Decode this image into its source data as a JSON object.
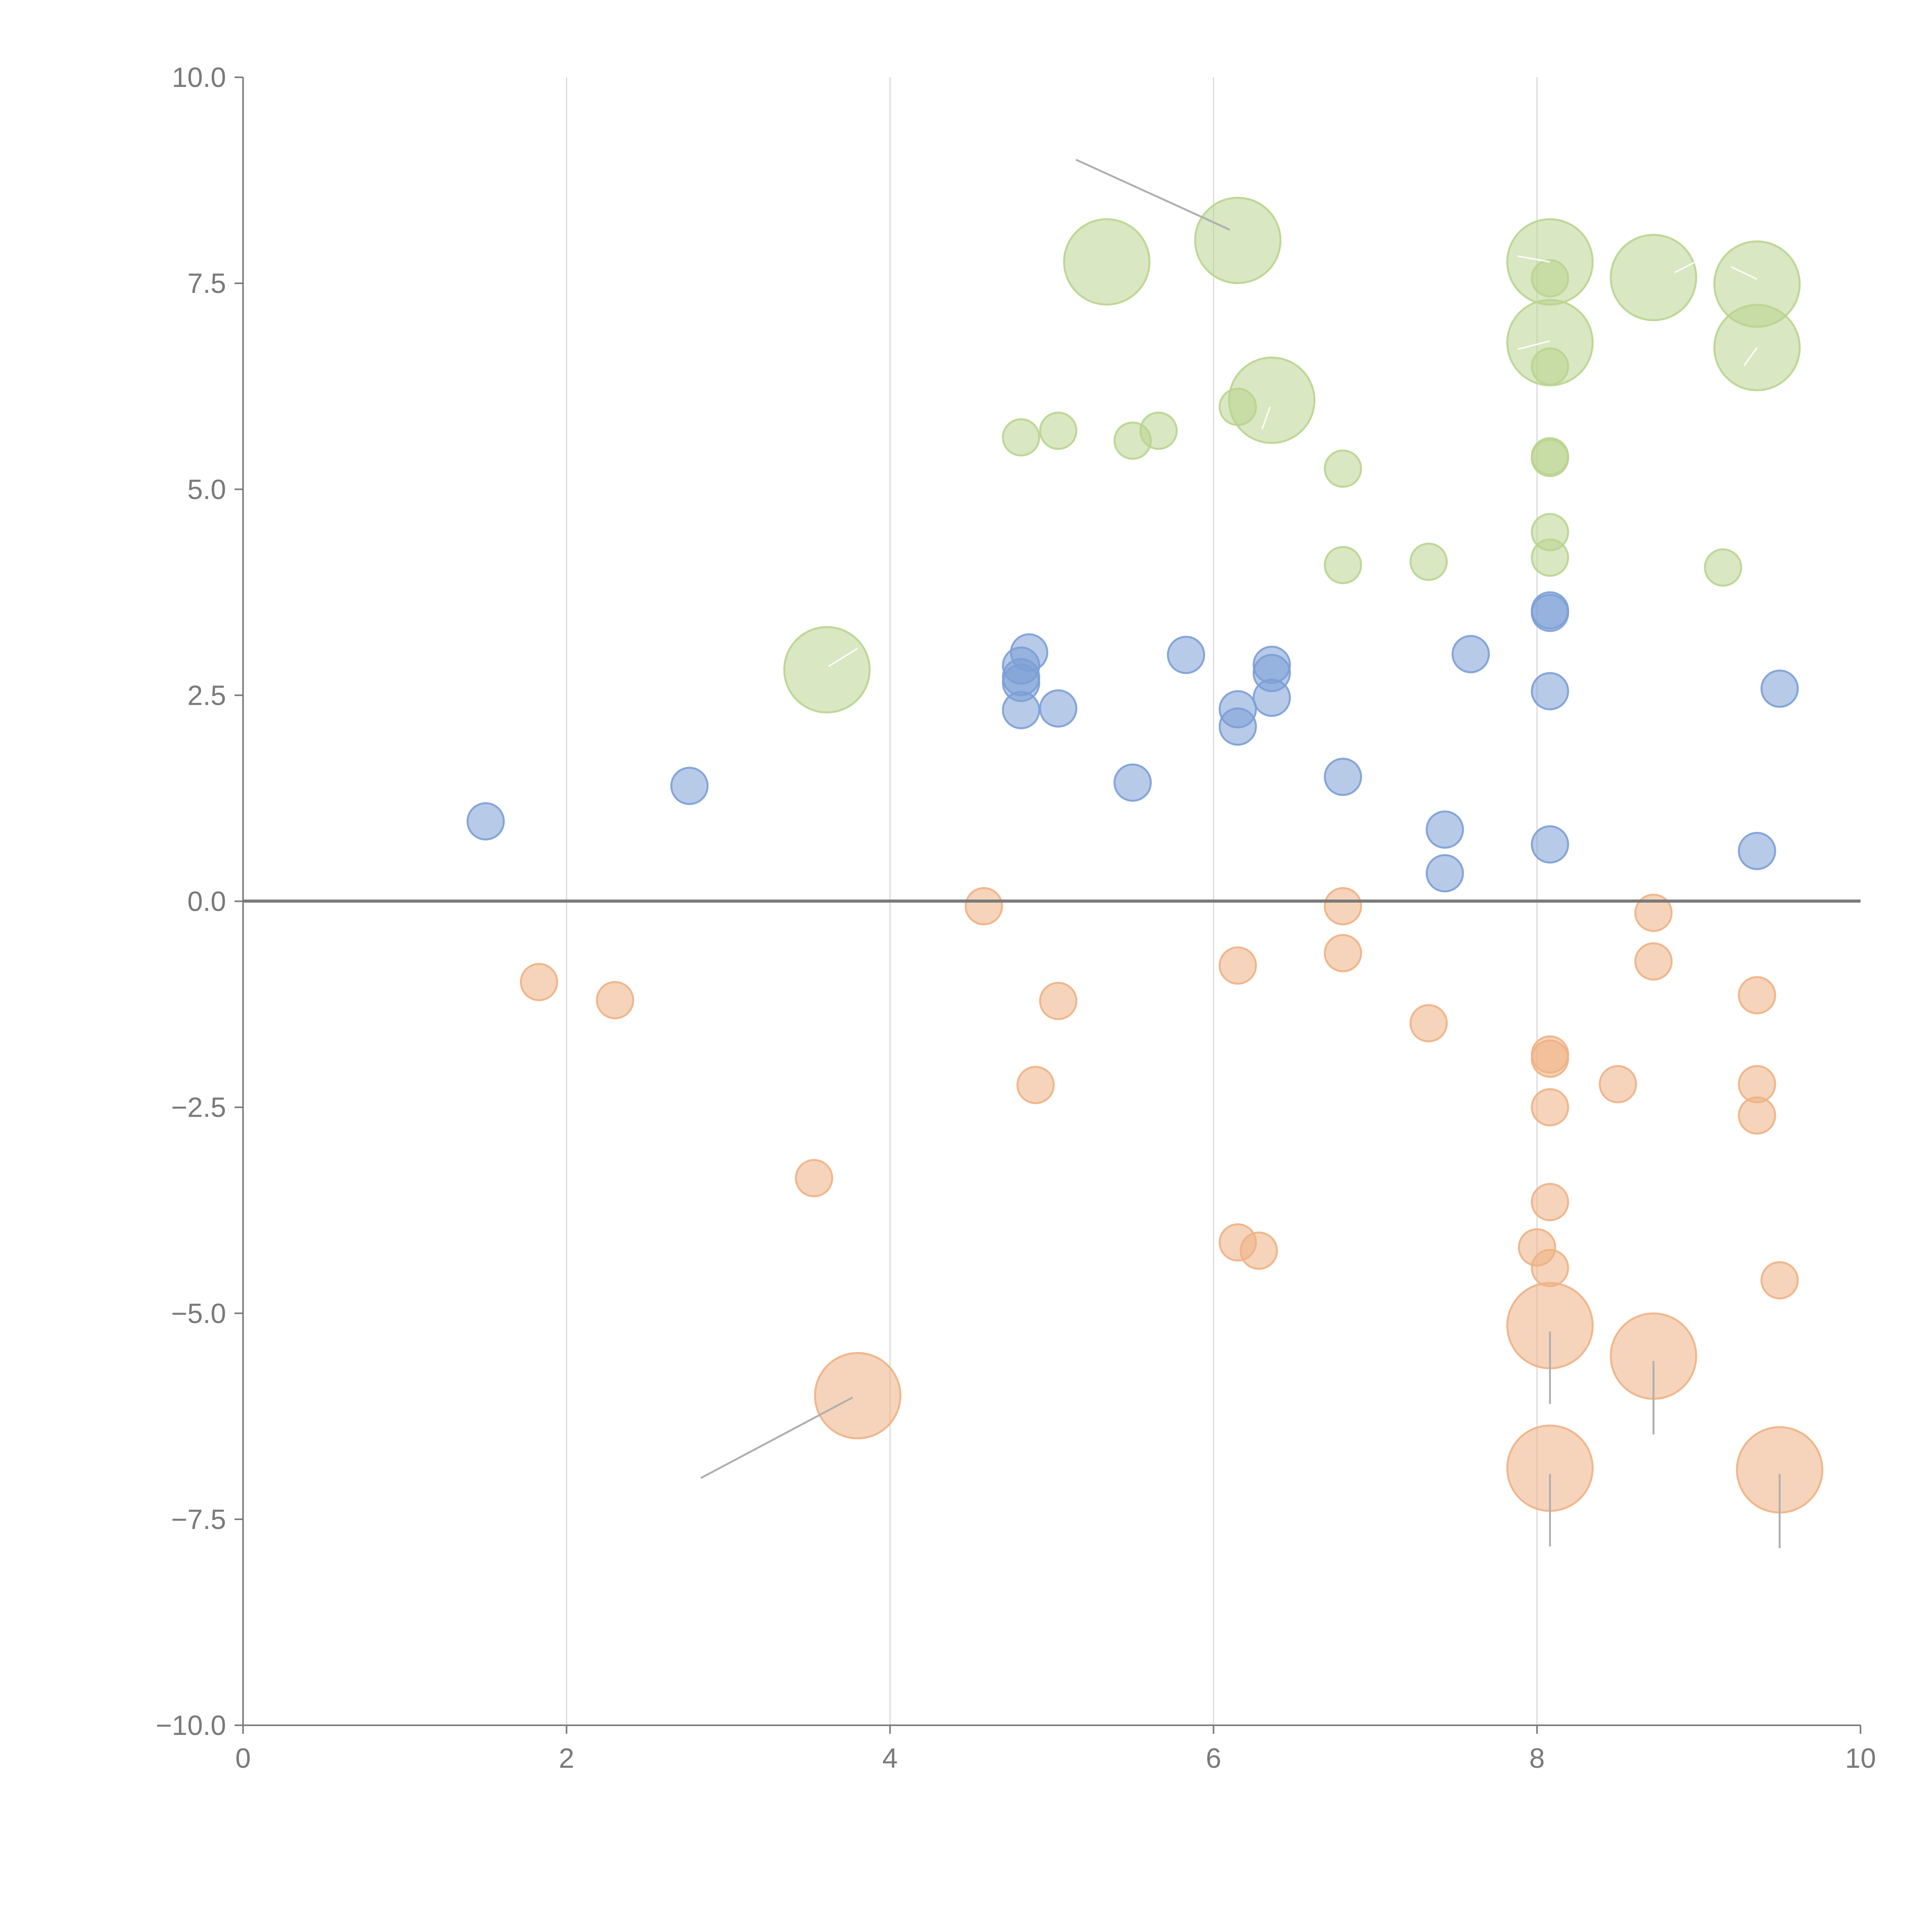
{
  "chart_data": {
    "type": "scatter",
    "title": "",
    "xlabel": "",
    "ylabel": "",
    "xlim": [
      0,
      10
    ],
    "ylim": [
      -10,
      10
    ],
    "x_ticks": [
      "0",
      "2",
      "4",
      "6",
      "8",
      "10"
    ],
    "y_ticks": [
      "10.0",
      "7.5",
      "5.0",
      "2.5",
      "0.0",
      "−2.5",
      "−5.0",
      "−7.5",
      "−10.0"
    ],
    "grid": "vertical",
    "legend": "none",
    "series": [
      {
        "name": "blue",
        "color": "#7b9fd6",
        "points": [
          {
            "x": 1.5,
            "y": 0.97,
            "size": 1
          },
          {
            "x": 2.76,
            "y": 1.4,
            "size": 1
          },
          {
            "x": 4.81,
            "y": 2.32,
            "size": 1
          },
          {
            "x": 4.81,
            "y": 2.65,
            "size": 1
          },
          {
            "x": 4.81,
            "y": 2.72,
            "size": 1
          },
          {
            "x": 4.81,
            "y": 2.86,
            "size": 1
          },
          {
            "x": 4.86,
            "y": 3.02,
            "size": 1
          },
          {
            "x": 5.04,
            "y": 2.34,
            "size": 1
          },
          {
            "x": 5.5,
            "y": 1.44,
            "size": 1
          },
          {
            "x": 5.83,
            "y": 2.99,
            "size": 1
          },
          {
            "x": 6.15,
            "y": 2.33,
            "size": 1
          },
          {
            "x": 6.15,
            "y": 2.12,
            "size": 1
          },
          {
            "x": 6.36,
            "y": 2.87,
            "size": 1
          },
          {
            "x": 6.36,
            "y": 2.77,
            "size": 1
          },
          {
            "x": 6.36,
            "y": 2.47,
            "size": 1
          },
          {
            "x": 6.8,
            "y": 1.51,
            "size": 1
          },
          {
            "x": 7.43,
            "y": 0.87,
            "size": 1
          },
          {
            "x": 7.43,
            "y": 0.34,
            "size": 1
          },
          {
            "x": 7.59,
            "y": 3.0,
            "size": 1
          },
          {
            "x": 8.08,
            "y": 3.53,
            "size": 1
          },
          {
            "x": 8.08,
            "y": 3.5,
            "size": 1
          },
          {
            "x": 8.08,
            "y": 2.55,
            "size": 1
          },
          {
            "x": 8.08,
            "y": 0.69,
            "size": 1
          },
          {
            "x": 9.36,
            "y": 0.61,
            "size": 1
          },
          {
            "x": 9.5,
            "y": 2.58,
            "size": 1
          }
        ]
      },
      {
        "name": "green",
        "color": "#b9d48f",
        "points": [
          {
            "x": 3.61,
            "y": 2.81,
            "size": 2.35
          },
          {
            "x": 4.81,
            "y": 5.63,
            "size": 1
          },
          {
            "x": 5.04,
            "y": 5.71,
            "size": 1
          },
          {
            "x": 5.34,
            "y": 7.76,
            "size": 2.35
          },
          {
            "x": 5.5,
            "y": 5.59,
            "size": 1
          },
          {
            "x": 5.66,
            "y": 5.71,
            "size": 1
          },
          {
            "x": 6.15,
            "y": 6.0,
            "size": 1
          },
          {
            "x": 6.15,
            "y": 8.02,
            "size": 2.35
          },
          {
            "x": 6.36,
            "y": 6.08,
            "size": 2.35
          },
          {
            "x": 6.8,
            "y": 5.25,
            "size": 1
          },
          {
            "x": 6.8,
            "y": 4.08,
            "size": 1
          },
          {
            "x": 7.33,
            "y": 4.12,
            "size": 1
          },
          {
            "x": 8.08,
            "y": 7.76,
            "size": 2.35
          },
          {
            "x": 8.08,
            "y": 7.56,
            "size": 1
          },
          {
            "x": 8.08,
            "y": 6.78,
            "size": 2.35
          },
          {
            "x": 8.08,
            "y": 6.49,
            "size": 1
          },
          {
            "x": 8.08,
            "y": 5.4,
            "size": 1
          },
          {
            "x": 8.08,
            "y": 5.38,
            "size": 1
          },
          {
            "x": 8.08,
            "y": 4.48,
            "size": 1
          },
          {
            "x": 8.08,
            "y": 4.17,
            "size": 1
          },
          {
            "x": 8.72,
            "y": 7.57,
            "size": 2.35
          },
          {
            "x": 9.15,
            "y": 4.05,
            "size": 1
          },
          {
            "x": 9.36,
            "y": 7.49,
            "size": 2.35
          },
          {
            "x": 9.36,
            "y": 6.72,
            "size": 2.35
          }
        ]
      },
      {
        "name": "orange",
        "color": "#eeb184",
        "points": [
          {
            "x": 1.83,
            "y": -0.98,
            "size": 1
          },
          {
            "x": 2.3,
            "y": -1.2,
            "size": 1
          },
          {
            "x": 3.53,
            "y": -3.36,
            "size": 1
          },
          {
            "x": 3.8,
            "y": -6.0,
            "size": 2.35
          },
          {
            "x": 4.58,
            "y": -0.06,
            "size": 1
          },
          {
            "x": 4.9,
            "y": -2.23,
            "size": 1
          },
          {
            "x": 5.04,
            "y": -1.21,
            "size": 1
          },
          {
            "x": 6.15,
            "y": -0.78,
            "size": 1
          },
          {
            "x": 6.15,
            "y": -4.14,
            "size": 1
          },
          {
            "x": 6.28,
            "y": -4.24,
            "size": 1
          },
          {
            "x": 6.8,
            "y": -0.06,
            "size": 1
          },
          {
            "x": 6.8,
            "y": -0.63,
            "size": 1
          },
          {
            "x": 7.33,
            "y": -1.48,
            "size": 1
          },
          {
            "x": 8.0,
            "y": -4.2,
            "size": 1
          },
          {
            "x": 8.08,
            "y": -1.86,
            "size": 1
          },
          {
            "x": 8.08,
            "y": -1.91,
            "size": 1
          },
          {
            "x": 8.08,
            "y": -2.5,
            "size": 1
          },
          {
            "x": 8.08,
            "y": -3.65,
            "size": 1
          },
          {
            "x": 8.08,
            "y": -4.45,
            "size": 1
          },
          {
            "x": 8.08,
            "y": -5.15,
            "size": 2.35
          },
          {
            "x": 8.08,
            "y": -6.88,
            "size": 2.35
          },
          {
            "x": 8.5,
            "y": -2.22,
            "size": 1
          },
          {
            "x": 8.72,
            "y": -0.14,
            "size": 1
          },
          {
            "x": 8.72,
            "y": -0.73,
            "size": 1
          },
          {
            "x": 8.72,
            "y": -5.52,
            "size": 2.35
          },
          {
            "x": 9.36,
            "y": -1.14,
            "size": 1
          },
          {
            "x": 9.36,
            "y": -2.22,
            "size": 1
          },
          {
            "x": 9.36,
            "y": -2.6,
            "size": 1
          },
          {
            "x": 9.5,
            "y": -4.6,
            "size": 1
          },
          {
            "x": 9.5,
            "y": -6.9,
            "size": 2.35
          }
        ]
      }
    ],
    "annotations": [
      {
        "type": "leader",
        "tone": "gray",
        "from": [
          5.15,
          9.0
        ],
        "to": [
          6.1,
          8.15
        ]
      },
      {
        "type": "leader",
        "tone": "gray",
        "from": [
          2.83,
          -7.0
        ],
        "to": [
          3.77,
          -6.02
        ]
      },
      {
        "type": "leader",
        "tone": "gray",
        "from": [
          8.08,
          -5.22
        ],
        "to": [
          8.08,
          -6.1
        ]
      },
      {
        "type": "leader",
        "tone": "gray",
        "from": [
          8.72,
          -5.58
        ],
        "to": [
          8.72,
          -6.47
        ]
      },
      {
        "type": "leader",
        "tone": "gray",
        "from": [
          8.08,
          -6.95
        ],
        "to": [
          8.08,
          -7.83
        ]
      },
      {
        "type": "leader",
        "tone": "gray",
        "from": [
          9.5,
          -6.95
        ],
        "to": [
          9.5,
          -7.85
        ]
      },
      {
        "type": "leader",
        "tone": "white",
        "from": [
          3.62,
          2.85
        ],
        "to": [
          3.8,
          3.07
        ]
      },
      {
        "type": "leader",
        "tone": "white",
        "from": [
          6.3,
          5.73
        ],
        "to": [
          6.35,
          6.0
        ]
      },
      {
        "type": "leader",
        "tone": "white",
        "from": [
          8.85,
          7.63
        ],
        "to": [
          9.0,
          7.78
        ]
      },
      {
        "type": "leader",
        "tone": "white",
        "from": [
          9.28,
          6.5
        ],
        "to": [
          9.36,
          6.72
        ]
      },
      {
        "type": "leader",
        "tone": "white",
        "from": [
          9.2,
          7.7
        ],
        "to": [
          9.36,
          7.55
        ]
      },
      {
        "type": "leader",
        "tone": "white",
        "from": [
          7.88,
          7.83
        ],
        "to": [
          8.08,
          7.76
        ]
      },
      {
        "type": "leader",
        "tone": "white",
        "from": [
          7.88,
          6.7
        ],
        "to": [
          8.08,
          6.8
        ]
      }
    ]
  }
}
